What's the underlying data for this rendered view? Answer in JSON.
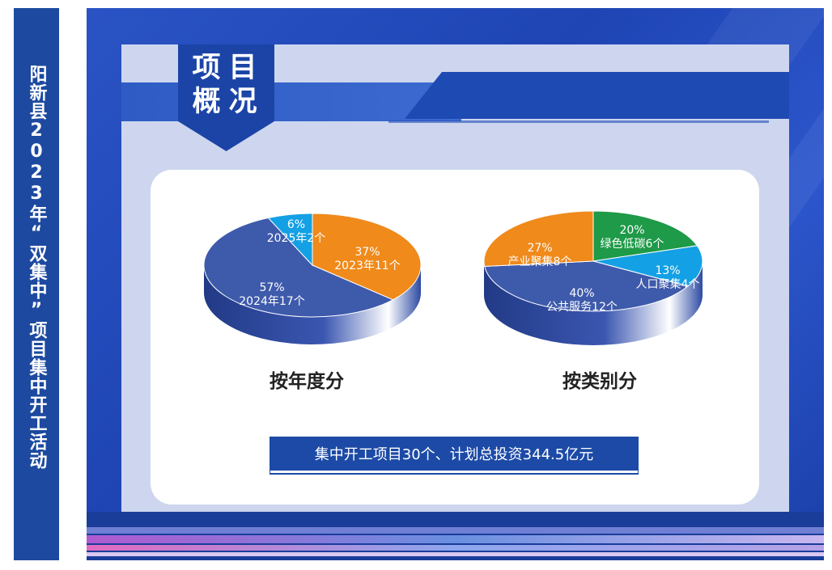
{
  "side_banner": {
    "title": "阳新县2023年“双集中”项目集中开工活动"
  },
  "badge": {
    "line1": "项目",
    "line2": "概况"
  },
  "summary": {
    "text": "集中开工项目30个、计划总投资344.5亿元"
  },
  "colors": {
    "navy": "#1c4aa6",
    "blue": "#3e5aab",
    "orange": "#ef8a1b",
    "cyan": "#14a0e4",
    "green": "#1e9a48"
  },
  "chart_data": [
    {
      "type": "pie",
      "title": "按年度分",
      "slices": [
        {
          "label": "2023年11个",
          "pct": "37%",
          "value": 11,
          "color": "#ef8a1b"
        },
        {
          "label": "2024年17个",
          "pct": "57%",
          "value": 17,
          "color": "#3e5aab"
        },
        {
          "label": "2025年2个",
          "pct": "6%",
          "value": 2,
          "color": "#14a0e4"
        }
      ]
    },
    {
      "type": "pie",
      "title": "按类别分",
      "slices": [
        {
          "label": "绿色低碳6个",
          "pct": "20%",
          "value": 6,
          "color": "#1e9a48"
        },
        {
          "label": "人口聚集4个",
          "pct": "13%",
          "value": 4,
          "color": "#14a0e4"
        },
        {
          "label": "公共服务12个",
          "pct": "40%",
          "value": 12,
          "color": "#3e5aab"
        },
        {
          "label": "产业聚集8个",
          "pct": "27%",
          "value": 8,
          "color": "#ef8a1b"
        }
      ]
    }
  ]
}
